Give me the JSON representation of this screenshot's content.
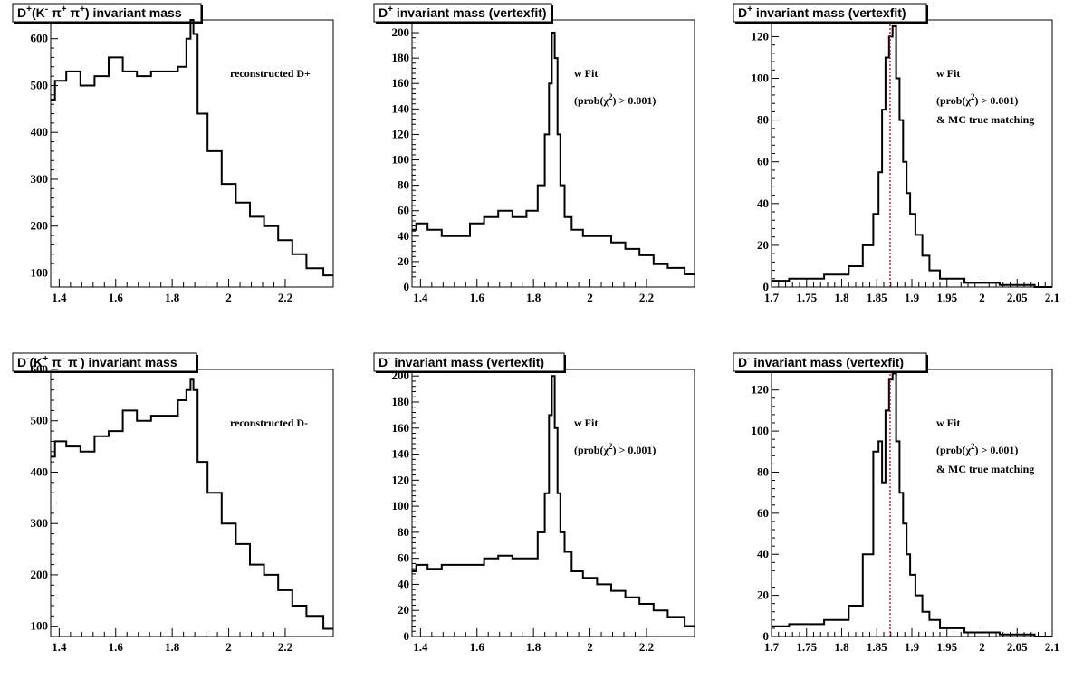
{
  "chart_data": [
    {
      "type": "histogram",
      "title_parts": [
        "D",
        "+",
        "(K",
        "-",
        " π",
        "+",
        " π",
        "+",
        ") invariant mass"
      ],
      "annotations": [
        "reconstructed D+"
      ],
      "xlim": [
        1.37,
        2.37
      ],
      "ylim": [
        70,
        640
      ],
      "xticks": [
        1.4,
        1.6,
        1.8,
        2,
        2.2
      ],
      "yticks": [
        100,
        200,
        300,
        400,
        500,
        600
      ],
      "bin_centers": [
        1.37,
        1.4,
        1.45,
        1.5,
        1.55,
        1.6,
        1.65,
        1.7,
        1.75,
        1.8,
        1.84,
        1.86,
        1.87,
        1.88,
        1.9,
        1.95,
        2.0,
        2.05,
        2.1,
        2.15,
        2.2,
        2.25,
        2.3,
        2.37
      ],
      "counts": [
        470,
        510,
        530,
        500,
        520,
        560,
        530,
        520,
        530,
        530,
        540,
        600,
        640,
        610,
        440,
        360,
        290,
        250,
        220,
        200,
        170,
        140,
        110,
        95
      ],
      "vline": null
    },
    {
      "type": "histogram",
      "title_parts": [
        "D",
        "+",
        " invariant mass (vertexfit)"
      ],
      "annotations": [
        "w Fit",
        "(prob(χ2) > 0.001)"
      ],
      "xlim": [
        1.37,
        2.37
      ],
      "ylim": [
        0,
        210
      ],
      "xticks": [
        1.4,
        1.6,
        1.8,
        2,
        2.2
      ],
      "yticks": [
        0,
        20,
        40,
        60,
        80,
        100,
        120,
        140,
        160,
        180,
        200
      ],
      "bin_centers": [
        1.37,
        1.4,
        1.45,
        1.5,
        1.55,
        1.6,
        1.65,
        1.7,
        1.75,
        1.8,
        1.83,
        1.85,
        1.86,
        1.87,
        1.88,
        1.89,
        1.9,
        1.92,
        1.95,
        2.0,
        2.05,
        2.1,
        2.15,
        2.2,
        2.25,
        2.3,
        2.37
      ],
      "counts": [
        45,
        50,
        45,
        40,
        40,
        50,
        55,
        60,
        55,
        60,
        80,
        120,
        160,
        200,
        180,
        120,
        80,
        55,
        45,
        40,
        40,
        35,
        30,
        25,
        18,
        15,
        10
      ],
      "vline": null
    },
    {
      "type": "histogram",
      "title_parts": [
        "D",
        "+",
        " invariant mass (vertexfit)"
      ],
      "annotations": [
        "w Fit",
        "(prob(χ2) > 0.001)",
        "& MC true matching"
      ],
      "xlim": [
        1.7,
        2.1
      ],
      "ylim": [
        0,
        128
      ],
      "xticks": [
        1.7,
        1.75,
        1.8,
        1.85,
        1.9,
        1.95,
        2,
        2.05,
        2.1
      ],
      "yticks": [
        0,
        20,
        40,
        60,
        80,
        100,
        120
      ],
      "bin_centers": [
        1.7,
        1.75,
        1.8,
        1.82,
        1.84,
        1.85,
        1.855,
        1.86,
        1.865,
        1.87,
        1.875,
        1.88,
        1.885,
        1.89,
        1.895,
        1.9,
        1.91,
        1.92,
        1.93,
        1.95,
        2.0,
        2.05,
        2.1
      ],
      "counts": [
        3,
        4,
        6,
        10,
        20,
        35,
        55,
        85,
        110,
        120,
        125,
        100,
        80,
        60,
        45,
        35,
        25,
        15,
        8,
        4,
        2,
        1,
        0
      ],
      "vline": 1.869
    },
    {
      "type": "histogram",
      "title_parts": [
        "D",
        "-",
        "(K",
        "+",
        " π",
        "-",
        " π",
        "-",
        ") invariant mass"
      ],
      "annotations": [
        "reconstructed D-"
      ],
      "xlim": [
        1.37,
        2.37
      ],
      "ylim": [
        80,
        600
      ],
      "xticks": [
        1.4,
        1.6,
        1.8,
        2,
        2.2
      ],
      "yticks": [
        100,
        200,
        300,
        400,
        500,
        600
      ],
      "bin_centers": [
        1.37,
        1.4,
        1.45,
        1.5,
        1.55,
        1.6,
        1.65,
        1.7,
        1.75,
        1.8,
        1.84,
        1.86,
        1.87,
        1.88,
        1.9,
        1.95,
        2.0,
        2.05,
        2.1,
        2.15,
        2.2,
        2.25,
        2.3,
        2.37
      ],
      "counts": [
        430,
        460,
        450,
        440,
        470,
        480,
        520,
        500,
        510,
        510,
        540,
        560,
        580,
        560,
        420,
        360,
        300,
        260,
        220,
        200,
        170,
        140,
        120,
        95
      ],
      "vline": null
    },
    {
      "type": "histogram",
      "title_parts": [
        "D",
        "-",
        " invariant mass (vertexfit)"
      ],
      "annotations": [
        "w Fit",
        "(prob(χ2) > 0.001)"
      ],
      "xlim": [
        1.37,
        2.37
      ],
      "ylim": [
        0,
        205
      ],
      "xticks": [
        1.4,
        1.6,
        1.8,
        2,
        2.2
      ],
      "yticks": [
        0,
        20,
        40,
        60,
        80,
        100,
        120,
        140,
        160,
        180,
        200
      ],
      "bin_centers": [
        1.37,
        1.4,
        1.45,
        1.5,
        1.55,
        1.6,
        1.65,
        1.7,
        1.75,
        1.8,
        1.83,
        1.85,
        1.86,
        1.87,
        1.88,
        1.89,
        1.9,
        1.92,
        1.95,
        2.0,
        2.05,
        2.1,
        2.15,
        2.2,
        2.25,
        2.3,
        2.37
      ],
      "counts": [
        50,
        55,
        52,
        55,
        55,
        55,
        60,
        62,
        60,
        60,
        80,
        110,
        170,
        200,
        160,
        110,
        80,
        65,
        50,
        45,
        40,
        35,
        30,
        25,
        20,
        15,
        8
      ],
      "vline": null
    },
    {
      "type": "histogram",
      "title_parts": [
        "D",
        "-",
        " invariant mass (vertexfit)"
      ],
      "annotations": [
        "w Fit",
        "(prob(χ2) > 0.001)",
        "& MC true matching"
      ],
      "xlim": [
        1.7,
        2.1
      ],
      "ylim": [
        0,
        130
      ],
      "xticks": [
        1.7,
        1.75,
        1.8,
        1.85,
        1.9,
        1.95,
        2,
        2.05,
        2.1
      ],
      "yticks": [
        0,
        20,
        40,
        60,
        80,
        100,
        120
      ],
      "bin_centers": [
        1.7,
        1.75,
        1.8,
        1.82,
        1.84,
        1.85,
        1.855,
        1.86,
        1.865,
        1.87,
        1.875,
        1.88,
        1.885,
        1.89,
        1.895,
        1.9,
        1.91,
        1.92,
        1.93,
        1.95,
        2.0,
        2.05,
        2.1
      ],
      "counts": [
        5,
        6,
        8,
        15,
        40,
        90,
        95,
        75,
        110,
        125,
        128,
        95,
        70,
        55,
        40,
        30,
        20,
        12,
        8,
        4,
        2,
        1,
        0
      ],
      "vline": 1.869
    }
  ]
}
